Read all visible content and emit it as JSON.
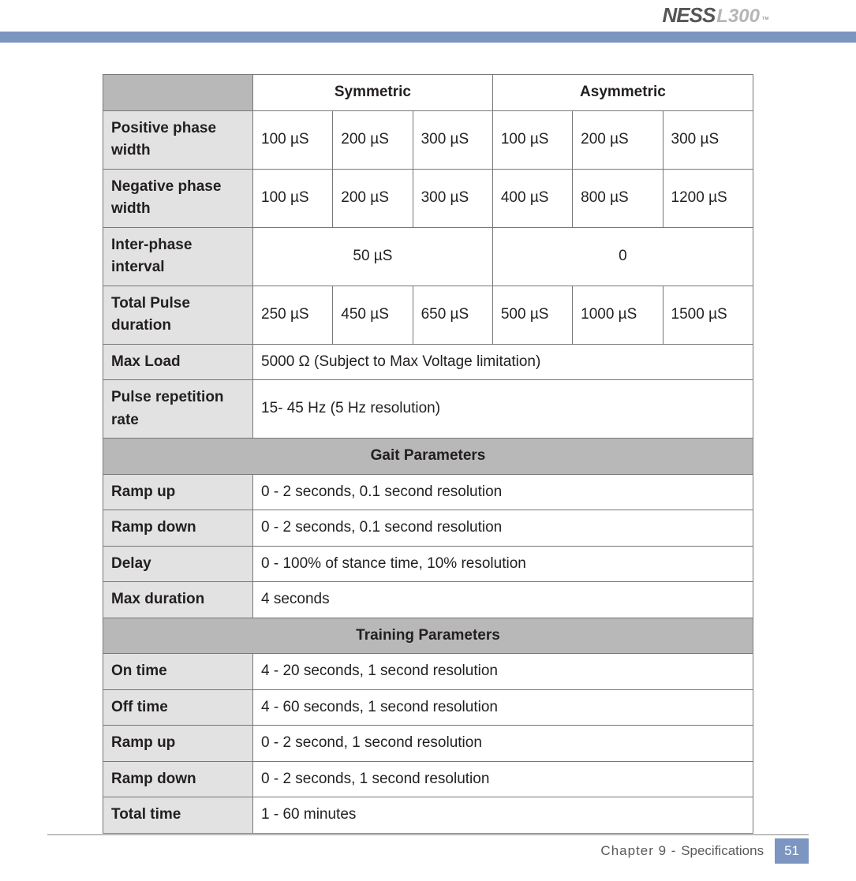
{
  "logo": {
    "brand": "NESS",
    "model": "L300",
    "tm": "™"
  },
  "colors": {
    "blue_bar": "#7d95c1",
    "section_bg": "#b8b8b8",
    "label_bg": "#e2e2e2",
    "border": "#777777",
    "text": "#231f20"
  },
  "table": {
    "columns": {
      "symmetric": "Symmetric",
      "asymmetric": "Asymmetric"
    },
    "rows": {
      "pos_phase": {
        "label": "Positive phase width",
        "sym": [
          "100 µS",
          "200 µS",
          "300 µS"
        ],
        "asym": [
          "100 µS",
          "200 µS",
          "300 µS"
        ]
      },
      "neg_phase": {
        "label": "Negative phase width",
        "sym": [
          "100 µS",
          "200 µS",
          "300 µS"
        ],
        "asym": [
          "400 µS",
          "800 µS",
          "1200 µS"
        ]
      },
      "inter_phase": {
        "label": "Inter-phase interval",
        "sym_merged": "50 µS",
        "asym_merged": "0"
      },
      "total_pulse": {
        "label": "Total Pulse duration",
        "sym": [
          "250 µS",
          "450 µS",
          "650 µS"
        ],
        "asym": [
          "500 µS",
          "1000 µS",
          "1500 µS"
        ]
      },
      "max_load": {
        "label": "Max Load",
        "value": "5000 Ω (Subject to Max Voltage limitation)"
      },
      "pulse_rep": {
        "label": "Pulse repetition rate",
        "value": "15- 45 Hz (5 Hz resolution)"
      }
    },
    "gait": {
      "title": "Gait Parameters",
      "ramp_up": {
        "label": "Ramp up",
        "value": "0 - 2 seconds, 0.1 second resolution"
      },
      "ramp_down": {
        "label": "Ramp down",
        "value": "0 - 2 seconds, 0.1 second resolution"
      },
      "delay": {
        "label": "Delay",
        "value": "0 - 100% of stance time, 10% resolution"
      },
      "max_dur": {
        "label": "Max duration",
        "value": "4 seconds"
      }
    },
    "training": {
      "title": "Training Parameters",
      "on_time": {
        "label": "On time",
        "value": "4 - 20 seconds, 1 second resolution"
      },
      "off_time": {
        "label": "Off time",
        "value": "4 - 60 seconds, 1 second resolution"
      },
      "ramp_up": {
        "label": "Ramp up",
        "value": "0 - 2 second, 1 second resolution"
      },
      "ramp_down": {
        "label": "Ramp down",
        "value": "0 - 2 seconds, 1 second resolution"
      },
      "total": {
        "label": "Total time",
        "value": "1 - 60 minutes"
      }
    }
  },
  "footer": {
    "chapter_label": "Chapter 9 - ",
    "section": "Specifications",
    "page": "51"
  }
}
